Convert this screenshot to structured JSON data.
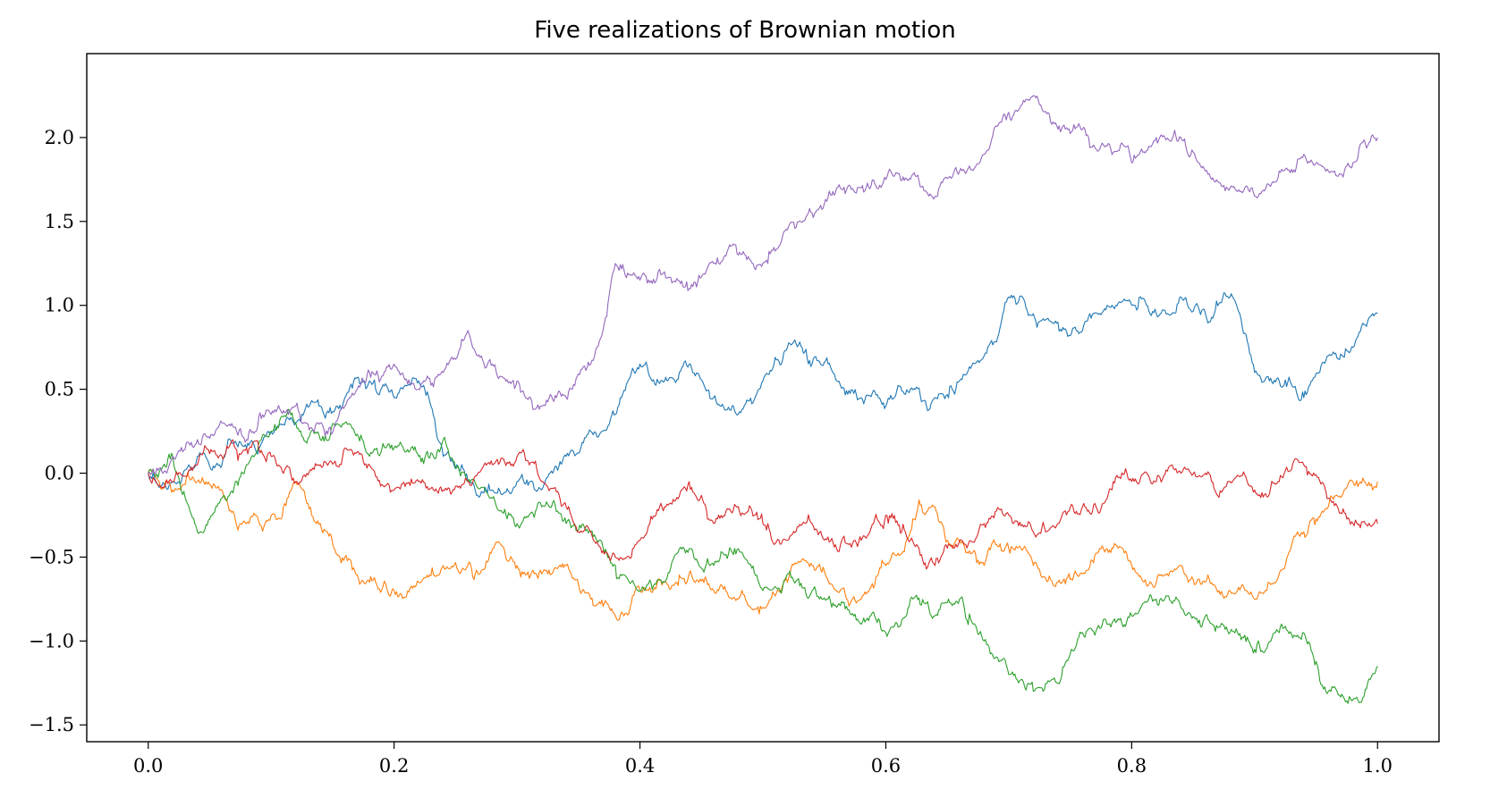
{
  "chart_data": {
    "type": "line",
    "title": "Five realizations of Brownian motion",
    "xlabel": "",
    "ylabel": "",
    "xlim": [
      -0.05,
      1.05
    ],
    "ylim": [
      -1.6,
      2.5
    ],
    "xticks": [
      0.0,
      0.2,
      0.4,
      0.6,
      0.8,
      1.0
    ],
    "xtick_labels": [
      "0.0",
      "0.2",
      "0.4",
      "0.6",
      "0.8",
      "1.0"
    ],
    "yticks": [
      -1.5,
      -1.0,
      -0.5,
      0.0,
      0.5,
      1.0,
      1.5,
      2.0
    ],
    "ytick_labels": [
      "−1.5",
      "−1.0",
      "−0.5",
      "0.0",
      "0.5",
      "1.0",
      "1.5",
      "2.0"
    ],
    "grid": false,
    "legend": "none",
    "n_points_per_series": 1001,
    "series": [
      {
        "color": "#1f77b4",
        "x": [
          0,
          0.02,
          0.04,
          0.06,
          0.08,
          0.1,
          0.12,
          0.14,
          0.16,
          0.18,
          0.2,
          0.22,
          0.24,
          0.26,
          0.28,
          0.3,
          0.32,
          0.34,
          0.36,
          0.38,
          0.4,
          0.42,
          0.44,
          0.46,
          0.48,
          0.5,
          0.52,
          0.54,
          0.56,
          0.58,
          0.6,
          0.62,
          0.64,
          0.66,
          0.68,
          0.7,
          0.72,
          0.74,
          0.76,
          0.78,
          0.8,
          0.82,
          0.84,
          0.86,
          0.88,
          0.9,
          0.92,
          0.94,
          0.96,
          0.98,
          1.0
        ],
        "y": [
          0,
          -0.05,
          0.1,
          0.05,
          0.15,
          0.25,
          0.3,
          0.4,
          0.45,
          0.55,
          0.45,
          0.55,
          0.1,
          -0.05,
          -0.1,
          -0.05,
          -0.1,
          0.1,
          0.25,
          0.35,
          0.65,
          0.55,
          0.65,
          0.45,
          0.35,
          0.55,
          0.75,
          0.65,
          0.55,
          0.45,
          0.4,
          0.5,
          0.45,
          0.55,
          0.7,
          1.05,
          0.95,
          0.9,
          0.85,
          1.0,
          1.0,
          0.95,
          1.05,
          0.95,
          1.05,
          0.6,
          0.55,
          0.45,
          0.7,
          0.75,
          0.95
        ]
      },
      {
        "color": "#ff7f0e",
        "x": [
          0,
          0.02,
          0.04,
          0.06,
          0.08,
          0.1,
          0.12,
          0.14,
          0.16,
          0.18,
          0.2,
          0.22,
          0.24,
          0.26,
          0.28,
          0.3,
          0.32,
          0.34,
          0.36,
          0.38,
          0.4,
          0.42,
          0.44,
          0.46,
          0.48,
          0.5,
          0.52,
          0.54,
          0.56,
          0.58,
          0.6,
          0.62,
          0.64,
          0.66,
          0.68,
          0.7,
          0.72,
          0.74,
          0.76,
          0.78,
          0.8,
          0.82,
          0.84,
          0.86,
          0.88,
          0.9,
          0.92,
          0.94,
          0.96,
          0.98,
          1.0
        ],
        "y": [
          0,
          -0.1,
          -0.05,
          -0.1,
          -0.3,
          -0.25,
          -0.05,
          -0.3,
          -0.5,
          -0.65,
          -0.7,
          -0.65,
          -0.55,
          -0.55,
          -0.45,
          -0.55,
          -0.6,
          -0.55,
          -0.75,
          -0.85,
          -0.7,
          -0.65,
          -0.6,
          -0.7,
          -0.75,
          -0.8,
          -0.65,
          -0.55,
          -0.7,
          -0.75,
          -0.55,
          -0.35,
          -0.2,
          -0.4,
          -0.55,
          -0.45,
          -0.55,
          -0.65,
          -0.6,
          -0.45,
          -0.55,
          -0.65,
          -0.55,
          -0.65,
          -0.7,
          -0.75,
          -0.6,
          -0.35,
          -0.2,
          -0.05,
          -0.05
        ]
      },
      {
        "color": "#2ca02c",
        "x": [
          0,
          0.02,
          0.04,
          0.06,
          0.08,
          0.1,
          0.12,
          0.14,
          0.16,
          0.18,
          0.2,
          0.22,
          0.24,
          0.26,
          0.28,
          0.3,
          0.32,
          0.34,
          0.36,
          0.38,
          0.4,
          0.42,
          0.44,
          0.46,
          0.48,
          0.5,
          0.52,
          0.54,
          0.56,
          0.58,
          0.6,
          0.62,
          0.64,
          0.66,
          0.68,
          0.7,
          0.72,
          0.74,
          0.76,
          0.78,
          0.8,
          0.82,
          0.84,
          0.86,
          0.88,
          0.9,
          0.92,
          0.94,
          0.96,
          0.98,
          1.0
        ],
        "y": [
          0,
          0.1,
          -0.35,
          -0.15,
          0.05,
          0.25,
          0.3,
          0.2,
          0.3,
          0.1,
          0.15,
          0.1,
          0.2,
          -0.05,
          -0.15,
          -0.3,
          -0.2,
          -0.3,
          -0.35,
          -0.55,
          -0.7,
          -0.65,
          -0.45,
          -0.55,
          -0.45,
          -0.7,
          -0.6,
          -0.7,
          -0.8,
          -0.9,
          -0.95,
          -0.75,
          -0.85,
          -0.75,
          -1.0,
          -1.2,
          -1.3,
          -1.25,
          -0.95,
          -0.9,
          -0.85,
          -0.75,
          -0.8,
          -0.85,
          -0.95,
          -1.05,
          -0.95,
          -0.95,
          -1.3,
          -1.35,
          -1.15
        ]
      },
      {
        "color": "#d62728",
        "x": [
          0,
          0.02,
          0.04,
          0.06,
          0.08,
          0.1,
          0.12,
          0.14,
          0.16,
          0.18,
          0.2,
          0.22,
          0.24,
          0.26,
          0.28,
          0.3,
          0.32,
          0.34,
          0.36,
          0.38,
          0.4,
          0.42,
          0.44,
          0.46,
          0.48,
          0.5,
          0.52,
          0.54,
          0.56,
          0.58,
          0.6,
          0.62,
          0.64,
          0.66,
          0.68,
          0.7,
          0.72,
          0.74,
          0.76,
          0.78,
          0.8,
          0.82,
          0.84,
          0.86,
          0.88,
          0.9,
          0.92,
          0.94,
          0.96,
          0.98,
          1.0
        ],
        "y": [
          0,
          -0.05,
          0.05,
          0.1,
          0.15,
          0.1,
          -0.05,
          0.05,
          0.15,
          0.05,
          -0.1,
          -0.05,
          -0.1,
          -0.05,
          0.05,
          0.1,
          -0.05,
          -0.2,
          -0.35,
          -0.5,
          -0.4,
          -0.2,
          -0.05,
          -0.3,
          -0.2,
          -0.3,
          -0.4,
          -0.3,
          -0.45,
          -0.4,
          -0.25,
          -0.4,
          -0.55,
          -0.4,
          -0.3,
          -0.25,
          -0.35,
          -0.3,
          -0.2,
          -0.15,
          -0.05,
          -0.05,
          0.0,
          0.0,
          -0.05,
          -0.1,
          -0.05,
          0.05,
          -0.15,
          -0.3,
          -0.3
        ]
      },
      {
        "color": "#9467bd",
        "x": [
          0,
          0.02,
          0.04,
          0.06,
          0.08,
          0.1,
          0.12,
          0.14,
          0.16,
          0.18,
          0.2,
          0.22,
          0.24,
          0.26,
          0.28,
          0.3,
          0.32,
          0.34,
          0.36,
          0.38,
          0.4,
          0.42,
          0.44,
          0.46,
          0.48,
          0.5,
          0.52,
          0.54,
          0.56,
          0.58,
          0.6,
          0.62,
          0.64,
          0.66,
          0.68,
          0.7,
          0.72,
          0.74,
          0.76,
          0.78,
          0.8,
          0.82,
          0.84,
          0.86,
          0.88,
          0.9,
          0.92,
          0.94,
          0.96,
          0.98,
          1.0
        ],
        "y": [
          0,
          0.1,
          0.2,
          0.3,
          0.2,
          0.35,
          0.4,
          0.3,
          0.4,
          0.6,
          0.65,
          0.5,
          0.6,
          0.85,
          0.65,
          0.55,
          0.4,
          0.45,
          0.65,
          1.25,
          1.15,
          1.2,
          1.1,
          1.25,
          1.3,
          1.25,
          1.45,
          1.55,
          1.7,
          1.7,
          1.75,
          1.75,
          1.65,
          1.8,
          1.9,
          2.15,
          2.25,
          2.05,
          2.05,
          1.95,
          1.85,
          2.0,
          2.0,
          1.8,
          1.7,
          1.65,
          1.8,
          1.9,
          1.8,
          1.85,
          2.0
        ]
      }
    ]
  }
}
